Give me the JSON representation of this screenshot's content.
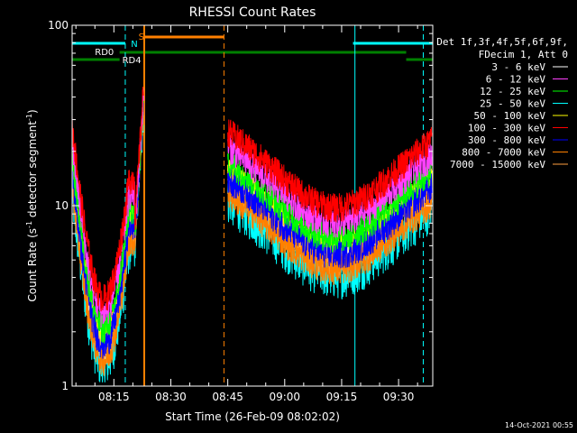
{
  "chart_data": {
    "type": "line",
    "title": "RHESSI Count Rates",
    "xlabel": "Start Time (26-Feb-09 08:02:02)",
    "ylabel_main": "Count Rate (s",
    "ylabel_sup1": "-1",
    "ylabel_mid": " detector segment",
    "ylabel_sup2": "-1",
    "ylabel_end": ")",
    "y_log": true,
    "ylim": [
      1,
      100
    ],
    "xlim_minutes": [
      "08:04",
      "09:39"
    ],
    "x_ticks": [
      "08:15",
      "08:30",
      "08:45",
      "09:00",
      "09:15",
      "09:30"
    ],
    "y_ticks": [
      "1",
      "10",
      "100"
    ],
    "legend_header": [
      "Det 1f,3f,4f,5f,6f,9f,",
      "FDecim 1, Att 0"
    ],
    "series": [
      {
        "name": "3 - 6 keV",
        "color": "#ffffff"
      },
      {
        "name": "6 - 12 keV",
        "color": "#ff40ff"
      },
      {
        "name": "12 - 25 keV",
        "color": "#00ff00"
      },
      {
        "name": "25 - 50 keV",
        "color": "#00ffff"
      },
      {
        "name": "50 - 100 keV",
        "color": "#ffff00"
      },
      {
        "name": "100 - 300 keV",
        "color": "#ff0000"
      },
      {
        "name": "300 - 800 keV",
        "color": "#0000ff"
      },
      {
        "name": "800 - 7000 keV",
        "color": "#ff8000"
      },
      {
        "name": "7000 - 15000 keV",
        "color": "#ffa040"
      }
    ],
    "flags": {
      "rd0": "RD0",
      "rd4": "RD4",
      "n": "N",
      "s": "S"
    },
    "timestamp": "14-Oct-2021 00:55"
  }
}
